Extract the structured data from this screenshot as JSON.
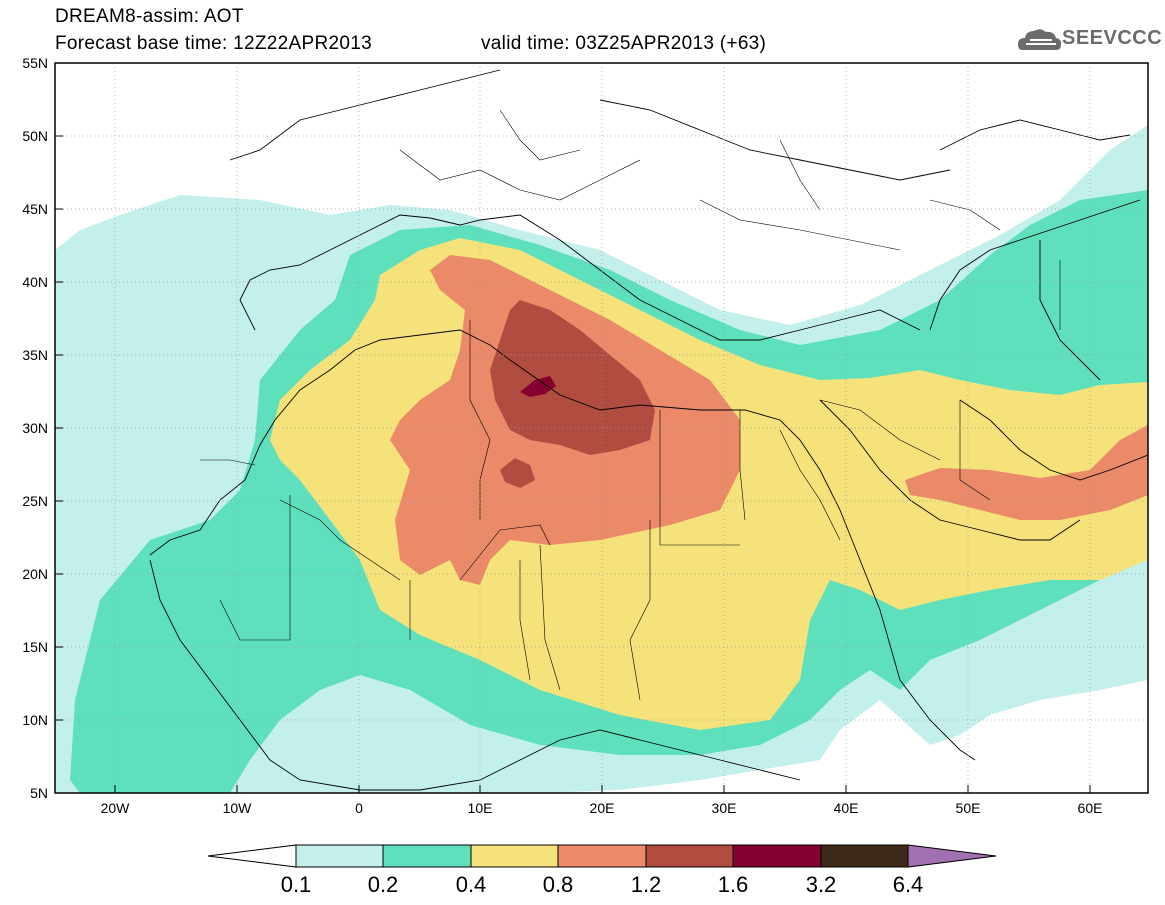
{
  "header": {
    "title": "DREAM8-assim: AOT",
    "base_time": "Forecast base time: 12Z22APR2013",
    "valid_time": "valid time: 03Z25APR2013 (+63)",
    "logo_text": "SEEVCCC",
    "logo_icon": "cloud-icon"
  },
  "axes": {
    "lat_labels": [
      "55N",
      "50N",
      "45N",
      "40N",
      "35N",
      "30N",
      "25N",
      "20N",
      "15N",
      "10N",
      "5N"
    ],
    "lon_labels": [
      "20W",
      "10W",
      "0",
      "10E",
      "20E",
      "30E",
      "40E",
      "50E",
      "60E"
    ]
  },
  "colorbar": {
    "labels": [
      "0.1",
      "0.2",
      "0.4",
      "0.8",
      "1.2",
      "1.6",
      "3.2",
      "6.4"
    ],
    "colors": [
      "#c4f0ec",
      "#5fe0bc",
      "#f5e27a",
      "#ea8a68",
      "#b04c40",
      "#830030",
      "#3e2a18",
      "#a070b0"
    ]
  },
  "map": {
    "fill_colors": {
      "c1": "#c4f0ec",
      "c2": "#5fe0bc",
      "c3": "#f5e27a",
      "c4": "#ea8a68",
      "c5": "#b04c40",
      "c6": "#830030"
    }
  }
}
